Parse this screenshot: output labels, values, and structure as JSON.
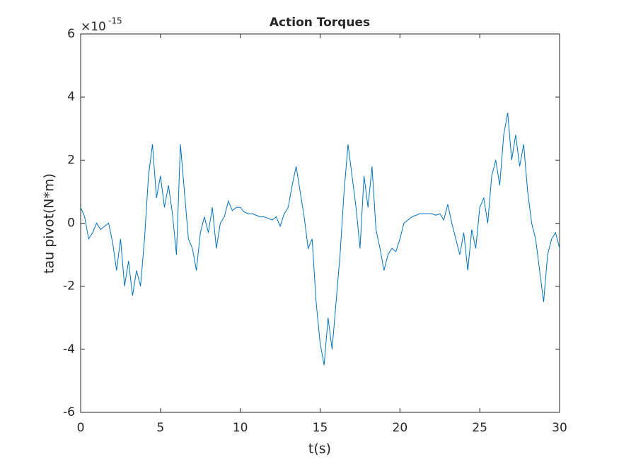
{
  "chart_data": {
    "type": "line",
    "title": "Action Torques",
    "x_label": "t(s)",
    "y_label": "tau pivot(N*m)",
    "y_multiplier": {
      "base": "×10",
      "exponent": "-15"
    },
    "xlim": [
      0,
      30
    ],
    "ylim": [
      -6,
      6
    ],
    "xticks": [
      0,
      5,
      10,
      15,
      20,
      25,
      30
    ],
    "yticks": [
      -6,
      -4,
      -2,
      0,
      2,
      4,
      6
    ],
    "grid": false,
    "series": [
      {
        "color": "#0072bd",
        "x": [
          0,
          0.25,
          0.5,
          0.75,
          1,
          1.25,
          1.5,
          1.75,
          2,
          2.25,
          2.5,
          2.75,
          3,
          3.25,
          3.5,
          3.75,
          4,
          4.25,
          4.5,
          4.75,
          5,
          5.25,
          5.5,
          5.75,
          6,
          6.25,
          6.5,
          6.75,
          7,
          7.25,
          7.5,
          7.75,
          8,
          8.25,
          8.5,
          8.75,
          9,
          9.25,
          9.5,
          9.75,
          10,
          10.25,
          10.5,
          10.75,
          11,
          11.25,
          11.5,
          11.75,
          12,
          12.25,
          12.5,
          12.75,
          13,
          13.25,
          13.5,
          13.75,
          14,
          14.25,
          14.5,
          14.75,
          15,
          15.25,
          15.5,
          15.75,
          16,
          16.25,
          16.5,
          16.75,
          17,
          17.25,
          17.5,
          17.75,
          18,
          18.25,
          18.5,
          18.75,
          19,
          19.25,
          19.5,
          19.75,
          20,
          20.25,
          20.5,
          20.75,
          21,
          21.25,
          21.5,
          21.75,
          22,
          22.25,
          22.5,
          22.75,
          23,
          23.25,
          23.5,
          23.75,
          24,
          24.25,
          24.5,
          24.75,
          25,
          25.25,
          25.5,
          25.75,
          26,
          26.25,
          26.5,
          26.75,
          27,
          27.25,
          27.5,
          27.75,
          28,
          28.25,
          28.5,
          28.75,
          29,
          29.25,
          29.5,
          29.75,
          30
        ],
        "values": [
          0.5,
          0.2,
          -0.5,
          -0.3,
          0,
          -0.2,
          -0.1,
          0,
          -0.6,
          -1.5,
          -0.5,
          -2,
          -1.2,
          -2.3,
          -1.5,
          -2.0,
          -0.5,
          1.5,
          2.5,
          0.8,
          1.5,
          0.5,
          1.2,
          0.3,
          -1.0,
          2.5,
          1.0,
          -0.5,
          -0.8,
          -1.5,
          -0.3,
          0.2,
          -0.3,
          0.5,
          -0.8,
          0,
          0.2,
          0.7,
          0.4,
          0.5,
          0.5,
          0.35,
          0.3,
          0.3,
          0.25,
          0.2,
          0.2,
          0.15,
          0.1,
          0.2,
          -0.1,
          0.3,
          0.5,
          1.2,
          1.8,
          1.0,
          0.2,
          -0.8,
          -0.5,
          -2.5,
          -3.8,
          -4.5,
          -3.0,
          -4.0,
          -2.5,
          -1.0,
          1.0,
          2.5,
          1.5,
          0.5,
          -0.8,
          1.5,
          0.5,
          1.8,
          -0.2,
          -0.8,
          -1.5,
          -1.0,
          -0.8,
          -0.9,
          -0.5,
          0,
          0.1,
          0.2,
          0.25,
          0.3,
          0.3,
          0.3,
          0.3,
          0.25,
          0.3,
          0.1,
          0.6,
          0,
          -0.5,
          -1.0,
          -0.3,
          -1.5,
          -0.2,
          -0.8,
          0.5,
          0.8,
          0,
          1.5,
          2.0,
          1.2,
          2.8,
          3.5,
          2.0,
          2.8,
          1.8,
          2.5,
          1.0,
          0,
          -0.5,
          -1.5,
          -2.5,
          -1.0,
          -0.5,
          -0.3,
          -0.8
        ]
      }
    ]
  }
}
